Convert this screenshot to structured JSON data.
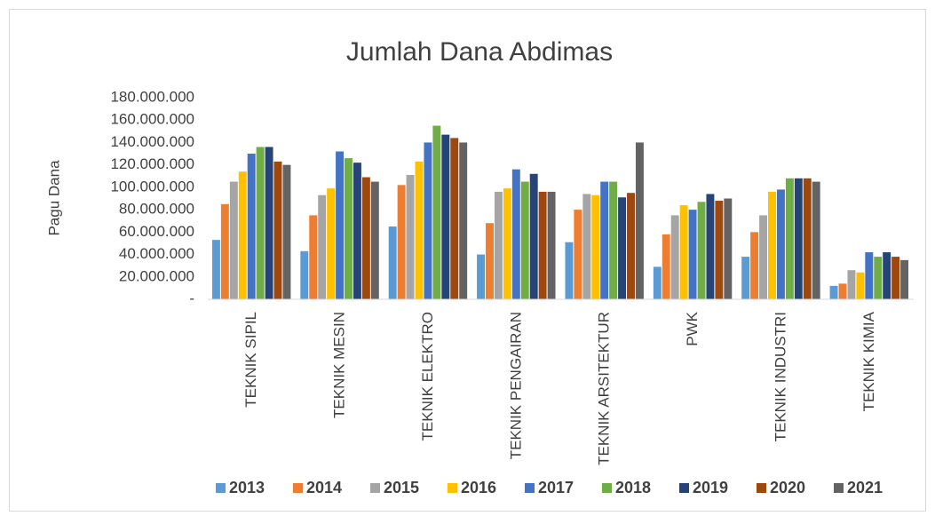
{
  "chart_data": {
    "type": "bar",
    "title": "Jumlah Dana Abdimas",
    "y_label": "Pagu Dana",
    "categories": [
      "TEKNIK SIPIL",
      "TEKNIK MESIN",
      "TEKNIK ELEKTRO",
      "TEKNIK PENGAIRAN",
      "TEKNIK ARSITEKTUR",
      "PWK",
      "TEKNIK INDUSTRI",
      "TEKNIK KIMIA"
    ],
    "series": [
      {
        "name": "2013",
        "color": "#5b9bd5",
        "values": [
          53000000,
          43000000,
          65000000,
          40000000,
          51000000,
          29000000,
          38000000,
          12000000
        ]
      },
      {
        "name": "2014",
        "color": "#ed7d31",
        "values": [
          85000000,
          75000000,
          102000000,
          68000000,
          80000000,
          58000000,
          60000000,
          14000000
        ]
      },
      {
        "name": "2015",
        "color": "#a5a5a5",
        "values": [
          105000000,
          93000000,
          111000000,
          96000000,
          94000000,
          75000000,
          75000000,
          26000000
        ]
      },
      {
        "name": "2016",
        "color": "#ffc000",
        "values": [
          114000000,
          99000000,
          123000000,
          99000000,
          93000000,
          84000000,
          96000000,
          24000000
        ]
      },
      {
        "name": "2017",
        "color": "#4472c4",
        "values": [
          130000000,
          132000000,
          140000000,
          116000000,
          105000000,
          80000000,
          98000000,
          42000000
        ]
      },
      {
        "name": "2018",
        "color": "#70ad47",
        "values": [
          136000000,
          126000000,
          155000000,
          105000000,
          105000000,
          87000000,
          108000000,
          38000000
        ]
      },
      {
        "name": "2019",
        "color": "#264478",
        "values": [
          136000000,
          122000000,
          147000000,
          112000000,
          91000000,
          94000000,
          108000000,
          42000000
        ]
      },
      {
        "name": "2020",
        "color": "#9e480e",
        "values": [
          123000000,
          109000000,
          144000000,
          96000000,
          95000000,
          88000000,
          108000000,
          38000000
        ]
      },
      {
        "name": "2021",
        "color": "#636363",
        "values": [
          120000000,
          105000000,
          140000000,
          96000000,
          140000000,
          90000000,
          105000000,
          35000000
        ]
      }
    ],
    "ylim": [
      0,
      180000000
    ],
    "yticks": [
      {
        "value": 0,
        "label": "-"
      },
      {
        "value": 20000000,
        "label": "20.000.000"
      },
      {
        "value": 40000000,
        "label": "40.000.000"
      },
      {
        "value": 60000000,
        "label": "60.000.000"
      },
      {
        "value": 80000000,
        "label": "80.000.000"
      },
      {
        "value": 100000000,
        "label": "100.000.000"
      },
      {
        "value": 120000000,
        "label": "120.000.000"
      },
      {
        "value": 140000000,
        "label": "140.000.000"
      },
      {
        "value": 160000000,
        "label": "160.000.000"
      },
      {
        "value": 180000000,
        "label": "180.000.000"
      }
    ],
    "grid": false,
    "legend": "bottom"
  }
}
